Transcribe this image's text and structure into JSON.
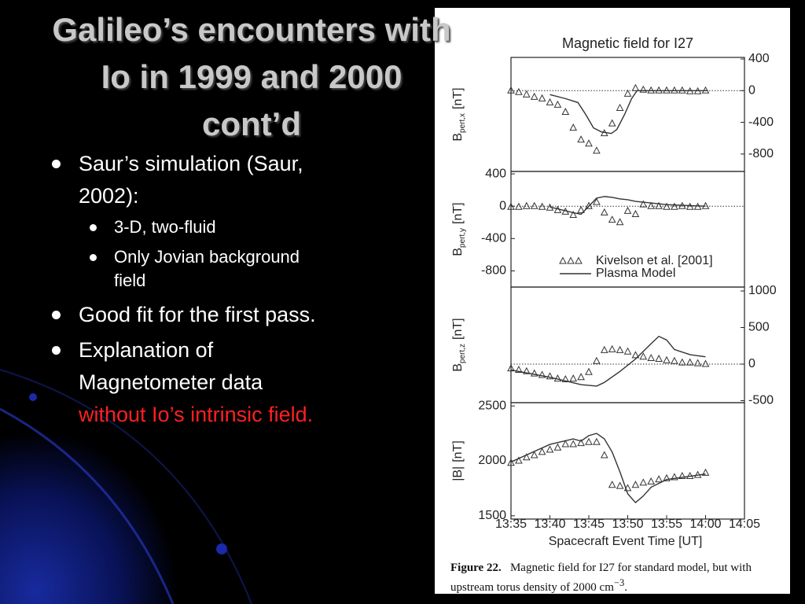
{
  "slide": {
    "title": "Galileo’s encounters with Io in 1999 and 2000 cont’d",
    "bullets": [
      {
        "text": "Saur’s simulation (Saur, 2002):",
        "sub": [
          "3-D, two-fluid",
          "Only Jovian background field"
        ]
      },
      {
        "text": "Good fit for the first pass."
      },
      {
        "text": "Explanation of Magnetometer data",
        "highlight": "without Io’s intrinsic field."
      }
    ],
    "caption": {
      "label": "Figure 22.",
      "text": "Magnetic field for I27 for standard model, but with upstream torus density of 2000 cm",
      "sup": "−3",
      "end": "."
    }
  },
  "chart_data": [
    {
      "type": "line",
      "title": "Magnetic field for I27",
      "ylabel": {
        "main": "B",
        "sub": "pert,x",
        "unit": "[nT]"
      },
      "xlim": [
        35,
        65
      ],
      "ylim": [
        -1020,
        420
      ],
      "yticks": [
        400,
        0,
        -400,
        -800
      ],
      "ytick_side": "right",
      "zero_line": true,
      "series": [
        {
          "style": "triangle",
          "color": "#333333",
          "x": [
            35,
            36,
            37,
            38,
            39,
            40,
            41,
            42,
            43,
            44,
            45,
            46,
            47,
            48,
            49,
            50,
            51,
            52,
            53,
            54,
            55,
            56,
            57,
            58,
            59,
            60
          ],
          "values": [
            0,
            -20,
            -50,
            -80,
            -100,
            -150,
            -180,
            -270,
            -470,
            -620,
            -670,
            -760,
            -540,
            -415,
            -220,
            -40,
            30,
            10,
            0,
            0,
            0,
            0,
            0,
            -10,
            -10,
            0
          ]
        },
        {
          "style": "line",
          "color": "#333333",
          "x": [
            40,
            42,
            43.6,
            44.6,
            45.6,
            46.6,
            47.9,
            48.6,
            49.6,
            50.5,
            51.2,
            60.3
          ],
          "values": [
            -50,
            -100,
            -150,
            -300,
            -470,
            -520,
            -540,
            -490,
            -300,
            -100,
            0,
            0
          ]
        }
      ]
    },
    {
      "type": "line",
      "ylabel": {
        "main": "B",
        "sub": "pert,y",
        "unit": "[nT]"
      },
      "xlim": [
        35,
        65
      ],
      "ylim": [
        -1000,
        430
      ],
      "yticks": [
        400,
        0,
        -400,
        -800
      ],
      "ytick_side": "left",
      "zero_line": true,
      "legend": "lower-left",
      "series": [
        {
          "name": "Kivelson et al. [2001]",
          "style": "triangle",
          "color": "#333333",
          "x": [
            35,
            36,
            37,
            38,
            39,
            40,
            41,
            42,
            43,
            44,
            45,
            46,
            47,
            48,
            49,
            50,
            51,
            52,
            53,
            54,
            55,
            56,
            57,
            58,
            59,
            60
          ],
          "values": [
            -10,
            -10,
            0,
            0,
            -10,
            -20,
            -50,
            -70,
            -110,
            -50,
            0,
            50,
            -80,
            -170,
            -200,
            -60,
            -100,
            20,
            0,
            0,
            -10,
            -10,
            0,
            -10,
            -10,
            0
          ]
        },
        {
          "name": "Plasma Model",
          "style": "line",
          "color": "#333333",
          "x": [
            40,
            43,
            44,
            45,
            46,
            47,
            48,
            49,
            50,
            51,
            52,
            55,
            60
          ],
          "values": [
            -10,
            -80,
            -100,
            0,
            100,
            120,
            110,
            90,
            80,
            60,
            50,
            20,
            0
          ]
        }
      ]
    },
    {
      "type": "line",
      "ylabel": {
        "main": "B",
        "sub": "pert,z",
        "unit": "[nT]"
      },
      "xlim": [
        35,
        65
      ],
      "ylim": [
        -527,
        1054
      ],
      "yticks": [
        1000,
        500,
        0,
        -500
      ],
      "ytick_side": "right",
      "zero_line": true,
      "series": [
        {
          "style": "triangle",
          "color": "#333333",
          "x": [
            35,
            36,
            37,
            38,
            39,
            40,
            41,
            42,
            43,
            44,
            45,
            46,
            47,
            48,
            49,
            50,
            51,
            52,
            53,
            54,
            55,
            56,
            57,
            58,
            59,
            60
          ],
          "values": [
            -60,
            -80,
            -100,
            -130,
            -150,
            -170,
            -200,
            -210,
            -200,
            -180,
            -110,
            40,
            190,
            200,
            190,
            170,
            120,
            100,
            80,
            70,
            50,
            40,
            20,
            20,
            10,
            0
          ]
        },
        {
          "style": "line",
          "color": "#333333",
          "x": [
            35,
            40,
            44,
            46,
            47,
            49,
            51,
            53,
            54,
            55,
            56,
            58,
            60
          ],
          "values": [
            -80,
            -180,
            -280,
            -300,
            -250,
            -100,
            70,
            280,
            380,
            330,
            200,
            130,
            100
          ]
        }
      ]
    },
    {
      "type": "line",
      "ylabel": {
        "main": "|B|",
        "unit": "[nT]"
      },
      "xlim": [
        35,
        65
      ],
      "ylim": [
        1470,
        2530
      ],
      "yticks": [
        2500,
        2000,
        1500
      ],
      "ytick_side": "left",
      "zero_line": false,
      "xticks": [
        {
          "value": 35,
          "label": "13:35"
        },
        {
          "value": 40,
          "label": "13:40"
        },
        {
          "value": 45,
          "label": "13:45"
        },
        {
          "value": 50,
          "label": "13:50"
        },
        {
          "value": 55,
          "label": "13:55"
        },
        {
          "value": 60,
          "label": "14:00"
        },
        {
          "value": 65,
          "label": "14:05"
        }
      ],
      "xlabel": "Spacecraft Event Time [UT]",
      "series": [
        {
          "style": "triangle",
          "color": "#333333",
          "x": [
            35,
            36,
            37,
            38,
            39,
            40,
            41,
            42,
            43,
            44,
            45,
            46,
            47,
            48,
            49,
            50,
            51,
            52,
            53,
            54,
            55,
            56,
            57,
            58,
            59,
            60
          ],
          "values": [
            1980,
            2000,
            2030,
            2050,
            2080,
            2100,
            2120,
            2150,
            2150,
            2160,
            2170,
            2170,
            2050,
            1780,
            1770,
            1750,
            1780,
            1800,
            1810,
            1830,
            1840,
            1850,
            1860,
            1860,
            1870,
            1890
          ]
        },
        {
          "style": "line",
          "color": "#333333",
          "x": [
            35,
            40,
            43,
            44,
            45,
            46,
            47,
            48,
            49,
            50,
            51,
            52,
            53,
            55,
            57,
            60
          ],
          "values": [
            1990,
            2150,
            2200,
            2180,
            2230,
            2250,
            2200,
            2080,
            1900,
            1700,
            1620,
            1680,
            1760,
            1830,
            1850,
            1880
          ]
        }
      ]
    }
  ]
}
